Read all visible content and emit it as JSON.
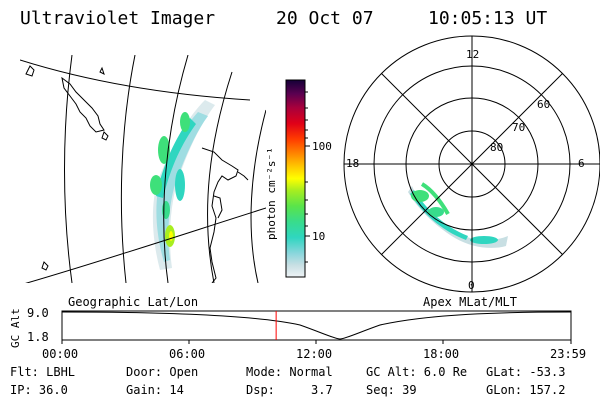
{
  "header": {
    "instrument": "Ultraviolet Imager",
    "date": "20 Oct 07",
    "time": "10:05:13 UT"
  },
  "panels": {
    "geo_label": "Geographic Lat/Lon",
    "apex_label": "Apex MLat/MLT"
  },
  "colorbar": {
    "label": "photon cm⁻²s⁻¹",
    "ticks": [
      "100",
      "10"
    ]
  },
  "polar": {
    "mlt_labels": [
      "12",
      "18",
      "6",
      "0"
    ],
    "lat_labels": [
      "60",
      "70",
      "80"
    ]
  },
  "altitude_plot": {
    "ylabel": "GC Alt",
    "yticks": [
      "9.0",
      "1.8"
    ],
    "xticks": [
      "00:00",
      "06:00",
      "12:00",
      "18:00",
      "23:59"
    ],
    "current_time_fraction": 0.4207
  },
  "status": {
    "flt": "Flt: LBHL",
    "ip": "IP: 36.0",
    "door": "Door: Open",
    "gain": "Gain: 14",
    "mode": "Mode: Normal",
    "dsp": "Dsp:     3.7",
    "gcalt": "GC Alt: 6.0 Re",
    "seq": "Seq: 39",
    "glat": "GLat: -53.3",
    "glon": "GLon: 157.2"
  },
  "colors": {
    "marker": "#ff0000",
    "colormap": [
      "#eef3f6",
      "#c8dfe3",
      "#7fd6d8",
      "#2fd6c0",
      "#3ee07a",
      "#7be83a",
      "#c8f020",
      "#ffff00",
      "#ffb000",
      "#ff6a00",
      "#ff2000",
      "#c80018",
      "#96003a",
      "#5a0050",
      "#1a0040"
    ]
  }
}
